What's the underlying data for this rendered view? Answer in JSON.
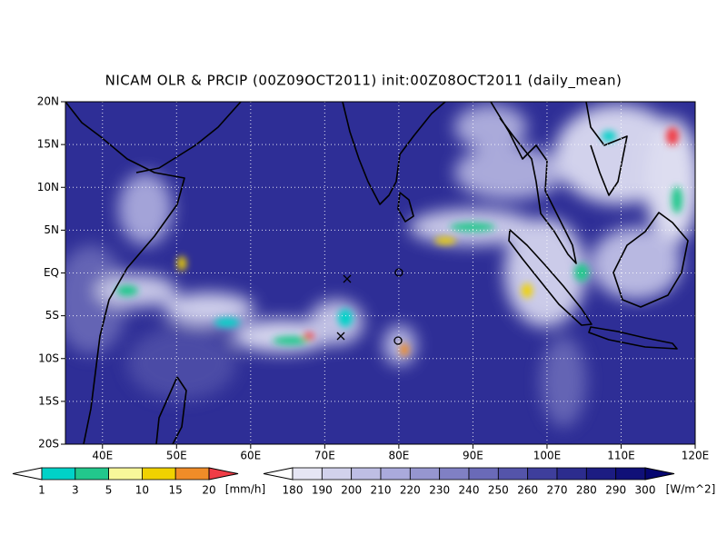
{
  "header": {
    "title": "NICAM OLR & PRCIP (00Z09OCT2011) init:00Z08OCT2011 (daily_mean)"
  },
  "map": {
    "lon_range": [
      35,
      120
    ],
    "lat_range": [
      -20,
      20
    ],
    "lat_ticks": [
      {
        "value": 20,
        "label": "20N"
      },
      {
        "value": 15,
        "label": "15N"
      },
      {
        "value": 10,
        "label": "10N"
      },
      {
        "value": 5,
        "label": "5N"
      },
      {
        "value": 0,
        "label": "EQ"
      },
      {
        "value": -5,
        "label": "5S"
      },
      {
        "value": -10,
        "label": "10S"
      },
      {
        "value": -15,
        "label": "15S"
      },
      {
        "value": -20,
        "label": "20S"
      }
    ],
    "lon_ticks": [
      {
        "value": 40,
        "label": "40E"
      },
      {
        "value": 50,
        "label": "50E"
      },
      {
        "value": 60,
        "label": "60E"
      },
      {
        "value": 70,
        "label": "70E"
      },
      {
        "value": 80,
        "label": "80E"
      },
      {
        "value": 90,
        "label": "90E"
      },
      {
        "value": 100,
        "label": "100E"
      },
      {
        "value": 110,
        "label": "110E"
      },
      {
        "value": 120,
        "label": "120E"
      }
    ]
  },
  "precip_colorbar": {
    "labels": [
      1,
      3,
      5,
      10,
      15,
      20
    ],
    "unit": "[mm/h]",
    "colors": [
      "#ffffff",
      "#00d2c8",
      "#22c88c",
      "#f8f89a",
      "#f0d200",
      "#f08c28",
      "#f03c46"
    ]
  },
  "olr_colorbar": {
    "labels": [
      180,
      190,
      200,
      210,
      220,
      230,
      240,
      250,
      260,
      270,
      280,
      290,
      300
    ],
    "unit": "[W/m^2]",
    "colors": [
      "#ffffff",
      "#e6e6f4",
      "#d2d2ec",
      "#bebee4",
      "#aaaadc",
      "#9696d0",
      "#8080c4",
      "#6a6ab8",
      "#5454aa",
      "#3e3e9c",
      "#2c2c8e",
      "#1c1c82",
      "#101078",
      "#060670"
    ]
  }
}
